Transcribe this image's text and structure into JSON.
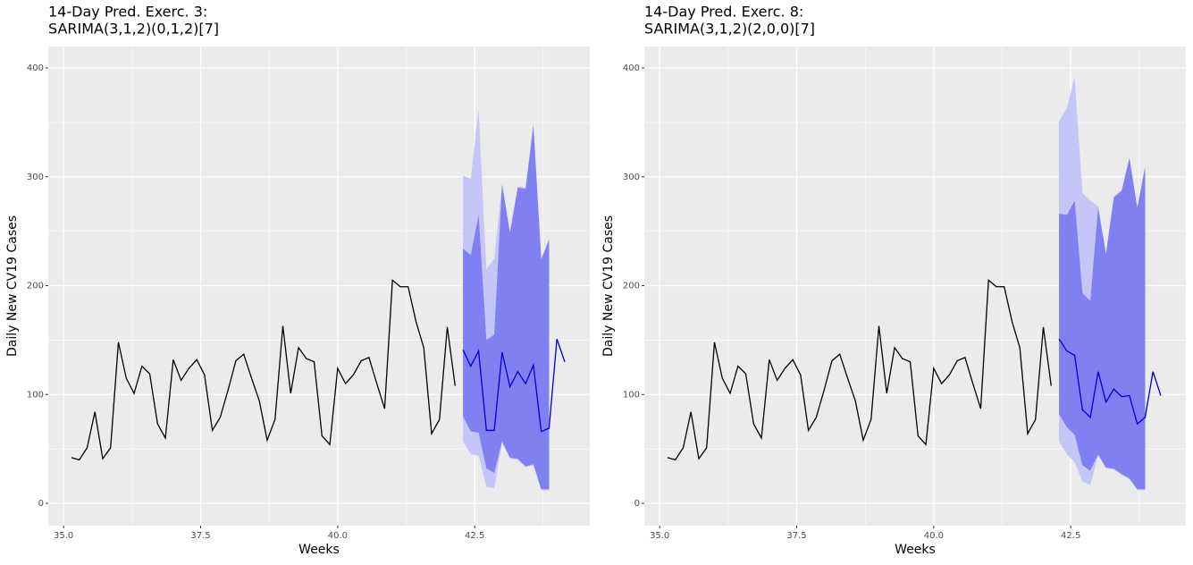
{
  "chart_data": [
    {
      "type": "line",
      "title": [
        "14-Day Pred. Exerc. 3:",
        "SARIMA(3,1,2)(0,1,2)[7]"
      ],
      "xlabel": "Weeks",
      "ylabel": "Daily New CV19 Cases",
      "xlim": [
        34.72,
        44.6
      ],
      "ylim": [
        -20.5,
        419.7
      ],
      "xticks": [
        {
          "value": 35,
          "label": "35.0"
        },
        37.5,
        {
          "value": 40,
          "label": "40.0"
        },
        42.5
      ],
      "yticks": [
        0,
        100,
        200,
        300,
        400
      ],
      "grid": true,
      "bands": [
        {
          "color": "#c5c5f7",
          "x": [
            42.286,
            42.429,
            42.571,
            42.714,
            42.857,
            43,
            43.143,
            43.286,
            43.429,
            43.571,
            43.714,
            43.857
          ],
          "upper": [
            301,
            298,
            362,
            215,
            225,
            294,
            250,
            291,
            290,
            349,
            225,
            243
          ],
          "lower": [
            57,
            45,
            44,
            15,
            14,
            56,
            41,
            40,
            33,
            35,
            12,
            12
          ]
        },
        {
          "color": "#8080f0",
          "x": [
            42.286,
            42.429,
            42.571,
            42.714,
            42.857,
            43,
            43.143,
            43.286,
            43.429,
            43.571,
            43.714,
            43.857
          ],
          "upper": [
            234,
            228,
            265,
            150,
            155,
            293,
            248,
            290,
            289,
            347,
            224,
            242
          ],
          "lower": [
            80,
            66,
            65,
            32,
            28,
            57,
            42,
            41,
            34,
            36,
            13,
            13
          ]
        }
      ],
      "series": [
        {
          "color": "#000000",
          "x": [
            35.143,
            35.286,
            35.429,
            35.571,
            35.714,
            35.857,
            36,
            36.143,
            36.286,
            36.429,
            36.571,
            36.714,
            36.857,
            37,
            37.143,
            37.286,
            37.429,
            37.571,
            37.714,
            37.857,
            38,
            38.143,
            38.286,
            38.429,
            38.571,
            38.714,
            38.857,
            39,
            39.143,
            39.286,
            39.429,
            39.571,
            39.714,
            39.857,
            40,
            40.143,
            40.286,
            40.429,
            40.571,
            40.714,
            40.857,
            41,
            41.143,
            41.286,
            41.429,
            41.571,
            41.714,
            41.857,
            42,
            42.143
          ],
          "values": [
            42,
            40,
            51,
            84,
            41,
            51,
            148,
            115,
            101,
            126,
            119,
            73,
            60,
            132,
            113,
            124,
            132,
            118,
            67,
            79,
            104,
            131,
            137,
            115,
            94,
            58,
            77,
            163,
            101,
            143,
            133,
            130,
            62,
            54,
            124,
            110,
            118,
            131,
            134,
            110,
            87,
            205,
            199,
            199,
            167,
            143,
            64,
            77,
            162,
            108
          ]
        },
        {
          "color": "#0000cc",
          "x": [
            42.286,
            42.429,
            42.571,
            42.714,
            42.857,
            43,
            43.143,
            43.286,
            43.429,
            43.571,
            43.714,
            43.857,
            44,
            44.143
          ],
          "values": [
            141,
            126,
            140,
            67,
            67,
            139,
            107,
            121,
            110,
            127,
            66,
            69,
            151,
            130
          ]
        }
      ]
    },
    {
      "type": "line",
      "title": [
        "14-Day Pred. Exerc. 8:",
        "SARIMA(3,1,2)(2,0,0)[7]"
      ],
      "xlabel": "Weeks",
      "ylabel": "Daily New CV19 Cases",
      "xlim": [
        34.72,
        44.6
      ],
      "ylim": [
        -20.5,
        419.7
      ],
      "xticks": [
        {
          "value": 35,
          "label": "35.0"
        },
        37.5,
        {
          "value": 40,
          "label": "40.0"
        },
        42.5
      ],
      "yticks": [
        0,
        100,
        200,
        300,
        400
      ],
      "grid": true,
      "bands": [
        {
          "color": "#c5c5f7",
          "x": [
            42.286,
            42.429,
            42.571,
            42.714,
            42.857,
            43,
            43.143,
            43.286,
            43.429,
            43.571,
            43.714,
            43.857
          ],
          "upper": [
            351,
            363,
            392,
            285,
            278,
            273,
            230,
            282,
            288,
            318,
            272,
            310
          ],
          "lower": [
            57,
            45,
            38,
            20,
            17,
            44,
            32,
            31,
            26,
            22,
            12,
            12
          ]
        },
        {
          "color": "#8080f0",
          "x": [
            42.286,
            42.429,
            42.571,
            42.714,
            42.857,
            43,
            43.143,
            43.286,
            43.429,
            43.571,
            43.714,
            43.857
          ],
          "upper": [
            266,
            265,
            278,
            193,
            186,
            272,
            229,
            281,
            287,
            317,
            271,
            309
          ],
          "lower": [
            82,
            70,
            63,
            35,
            30,
            45,
            33,
            32,
            27,
            23,
            13,
            13
          ]
        }
      ],
      "series": [
        {
          "color": "#000000",
          "x": [
            35.143,
            35.286,
            35.429,
            35.571,
            35.714,
            35.857,
            36,
            36.143,
            36.286,
            36.429,
            36.571,
            36.714,
            36.857,
            37,
            37.143,
            37.286,
            37.429,
            37.571,
            37.714,
            37.857,
            38,
            38.143,
            38.286,
            38.429,
            38.571,
            38.714,
            38.857,
            39,
            39.143,
            39.286,
            39.429,
            39.571,
            39.714,
            39.857,
            40,
            40.143,
            40.286,
            40.429,
            40.571,
            40.714,
            40.857,
            41,
            41.143,
            41.286,
            41.429,
            41.571,
            41.714,
            41.857,
            42,
            42.143
          ],
          "values": [
            42,
            40,
            51,
            84,
            41,
            51,
            148,
            115,
            101,
            126,
            119,
            73,
            60,
            132,
            113,
            124,
            132,
            118,
            67,
            79,
            104,
            131,
            137,
            115,
            94,
            58,
            77,
            163,
            101,
            143,
            133,
            130,
            62,
            54,
            124,
            110,
            118,
            131,
            134,
            110,
            87,
            205,
            199,
            199,
            167,
            143,
            64,
            77,
            162,
            108
          ]
        },
        {
          "color": "#0000cc",
          "x": [
            42.286,
            42.429,
            42.571,
            42.714,
            42.857,
            43,
            43.143,
            43.286,
            43.429,
            43.571,
            43.714,
            43.857,
            44,
            44.143
          ],
          "values": [
            151,
            140,
            136,
            86,
            79,
            121,
            93,
            105,
            98,
            99,
            73,
            79,
            121,
            99
          ]
        }
      ]
    }
  ]
}
